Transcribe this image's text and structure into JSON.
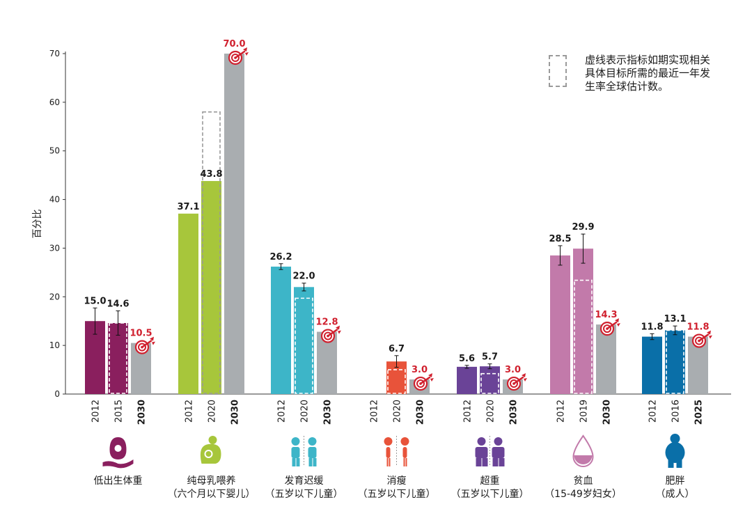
{
  "chart_data": {
    "type": "bar",
    "ylabel": "百分比",
    "ylim": [
      0,
      70
    ],
    "yticks": [
      0,
      10,
      20,
      30,
      40,
      50,
      60,
      70
    ],
    "legend": {
      "text": "虚线表示指标如期实现相关具体目标所需的最近一年发生率全球估计数。",
      "placement": "top-right"
    },
    "groups": [
      {
        "name": "低出生体重",
        "sub": "",
        "color": "#8a1f5e",
        "icon": "baby-bag-icon",
        "bars": [
          {
            "year": "2012",
            "value": 15.0,
            "label": "15.0",
            "error": 2.7,
            "kind": "actual",
            "dashed": false
          },
          {
            "year": "2015",
            "value": 14.6,
            "label": "14.6",
            "error": 2.5,
            "kind": "actual",
            "dashed": true,
            "dash_value": 14.6
          },
          {
            "year": "2030",
            "value": 10.5,
            "label": "10.5",
            "kind": "target"
          }
        ]
      },
      {
        "name": "纯母乳喂养",
        "sub": "（六个月以下婴儿）",
        "color": "#a7c63b",
        "icon": "breastfeeding-icon",
        "bars": [
          {
            "year": "2012",
            "value": 37.1,
            "label": "37.1",
            "kind": "actual",
            "dashed": false
          },
          {
            "year": "2020",
            "value": 43.8,
            "label": "43.8",
            "kind": "actual",
            "dashed": true,
            "dash_value": 58.0
          },
          {
            "year": "2030",
            "value": 70.0,
            "label": "70.0",
            "kind": "target"
          }
        ]
      },
      {
        "name": "发育迟缓",
        "sub": "（五岁以下儿童）",
        "color": "#3db5c8",
        "icon": "stunted-children-icon",
        "bars": [
          {
            "year": "2012",
            "value": 26.2,
            "label": "26.2",
            "error": 0.6,
            "kind": "actual",
            "dashed": false
          },
          {
            "year": "2020",
            "value": 22.0,
            "label": "22.0",
            "error": 0.8,
            "kind": "actual",
            "dashed": true,
            "dash_value": 19.7
          },
          {
            "year": "2030",
            "value": 12.8,
            "label": "12.8",
            "kind": "target"
          }
        ]
      },
      {
        "name": "消瘦",
        "sub": "（五岁以下儿童）",
        "color": "#e8533a",
        "icon": "wasted-children-icon",
        "bars": [
          {
            "year": "2012",
            "value": null,
            "label": "",
            "kind": "actual",
            "dashed": false
          },
          {
            "year": "2020",
            "value": 6.7,
            "label": "6.7",
            "error": 1.2,
            "kind": "actual",
            "dashed": true,
            "dash_value": 5.0
          },
          {
            "year": "2030",
            "value": 3.0,
            "label": "3.0",
            "kind": "target"
          }
        ]
      },
      {
        "name": "超重",
        "sub": "（五岁以下儿童）",
        "color": "#6a4397",
        "icon": "overweight-children-icon",
        "bars": [
          {
            "year": "2012",
            "value": 5.6,
            "label": "5.6",
            "error": 0.3,
            "kind": "actual",
            "dashed": false
          },
          {
            "year": "2020",
            "value": 5.7,
            "label": "5.7",
            "error": 0.5,
            "kind": "actual",
            "dashed": true,
            "dash_value": 4.2
          },
          {
            "year": "2030",
            "value": 3.0,
            "label": "3.0",
            "kind": "target"
          }
        ]
      },
      {
        "name": "贫血",
        "sub": "（15-49岁妇女）",
        "color": "#c27aaa",
        "icon": "blood-drop-icon",
        "bars": [
          {
            "year": "2012",
            "value": 28.5,
            "label": "28.5",
            "error": 2.0,
            "kind": "actual",
            "dashed": false
          },
          {
            "year": "2019",
            "value": 29.9,
            "label": "29.9",
            "error": 3.0,
            "kind": "actual",
            "dashed": true,
            "dash_value": 23.4
          },
          {
            "year": "2030",
            "value": 14.3,
            "label": "14.3",
            "kind": "target"
          }
        ]
      },
      {
        "name": "肥胖",
        "sub": "（成人）",
        "color": "#0a6fa8",
        "icon": "obese-adult-icon",
        "bars": [
          {
            "year": "2012",
            "value": 11.8,
            "label": "11.8",
            "error": 0.6,
            "kind": "actual",
            "dashed": false
          },
          {
            "year": "2016",
            "value": 13.1,
            "label": "13.1",
            "error": 0.9,
            "kind": "actual",
            "dashed": true,
            "dash_value": 13.1
          },
          {
            "year": "2025",
            "value": 11.8,
            "label": "11.8",
            "kind": "target"
          }
        ]
      }
    ],
    "colors": {
      "target_bar": "#a9adb0",
      "target_label": "#d0202e",
      "target_icon": "#d0202e",
      "dash": "#9a9a9a",
      "text": "#1a1a1a"
    }
  }
}
